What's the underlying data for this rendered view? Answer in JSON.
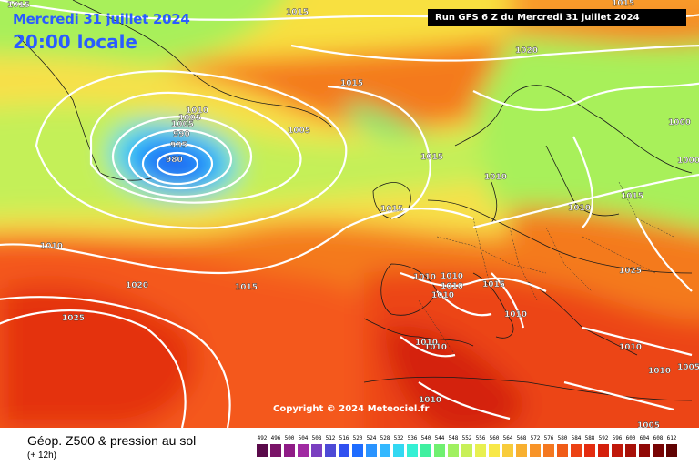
{
  "header": {
    "date": "Mercredi 31 juillet 2024",
    "time": "20:00 locale",
    "run": "Run GFS 6 Z du Mercredi 31 juillet 2024"
  },
  "copyright": "Copyright © 2024 Meteociel.fr",
  "footer": {
    "title": "Géop. Z500 & pression au sol",
    "subtitle": "(+ 12h)"
  },
  "legend": {
    "values": [
      "492",
      "496",
      "500",
      "504",
      "508",
      "512",
      "516",
      "520",
      "524",
      "528",
      "532",
      "536",
      "540",
      "544",
      "548",
      "552",
      "556",
      "560",
      "564",
      "568",
      "572",
      "576",
      "580",
      "584",
      "588",
      "592",
      "596",
      "600",
      "604",
      "608",
      "612"
    ],
    "colors": [
      "#5a0a4a",
      "#7a1468",
      "#8f1b86",
      "#a02aa2",
      "#7a3fc0",
      "#4d4ad6",
      "#3050f0",
      "#1e6cff",
      "#2a94ff",
      "#33b8ff",
      "#33d8f2",
      "#35f0d4",
      "#40f0a0",
      "#70f070",
      "#a0f060",
      "#c8f058",
      "#e8f050",
      "#f8e848",
      "#f8cc3c",
      "#f8b030",
      "#f89428",
      "#f47820",
      "#f05c18",
      "#ec4214",
      "#e42c10",
      "#d4200c",
      "#c0180a",
      "#a81008",
      "#900806",
      "#780404",
      "#600202"
    ]
  },
  "isobars": {
    "labels": [
      "1015",
      "1015",
      "1015",
      "1025",
      "1020",
      "1015",
      "1010",
      "1005",
      "990",
      "985",
      "980",
      "1005",
      "1015",
      "1010",
      "1015",
      "1020",
      "1015",
      "1010",
      "1010",
      "1015",
      "1025",
      "1000",
      "1000",
      "1005",
      "1010",
      "1010",
      "1010",
      "1010",
      "1010",
      "1010",
      "1015",
      "1010",
      "1010",
      "1010",
      "1010",
      "1005",
      "1005"
    ]
  }
}
